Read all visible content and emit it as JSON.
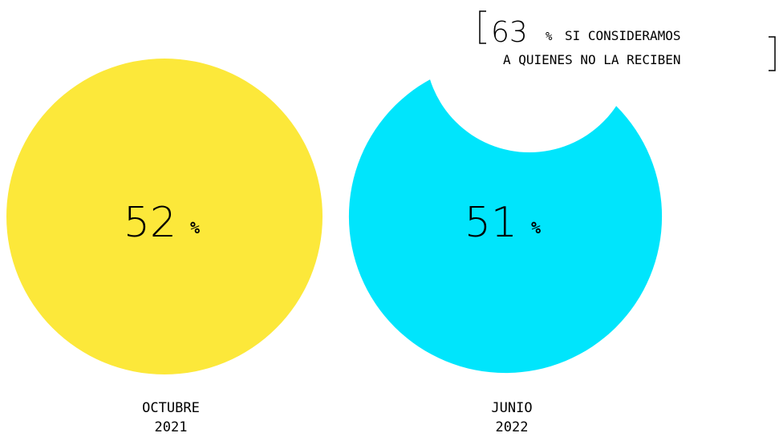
{
  "chart_data": {
    "type": "circles",
    "categories": [
      "OCTUBRE",
      "JUNIO"
    ],
    "years": [
      "2021",
      "2022"
    ],
    "values": [
      52,
      51
    ],
    "unit": "%",
    "colors": [
      "#fce83a",
      "#00e5fc"
    ],
    "annotation": {
      "value": 63,
      "unit": "%",
      "lines": [
        "SI CONSIDERAMOS",
        "A QUIENES NO LA RECIBEN"
      ]
    }
  }
}
